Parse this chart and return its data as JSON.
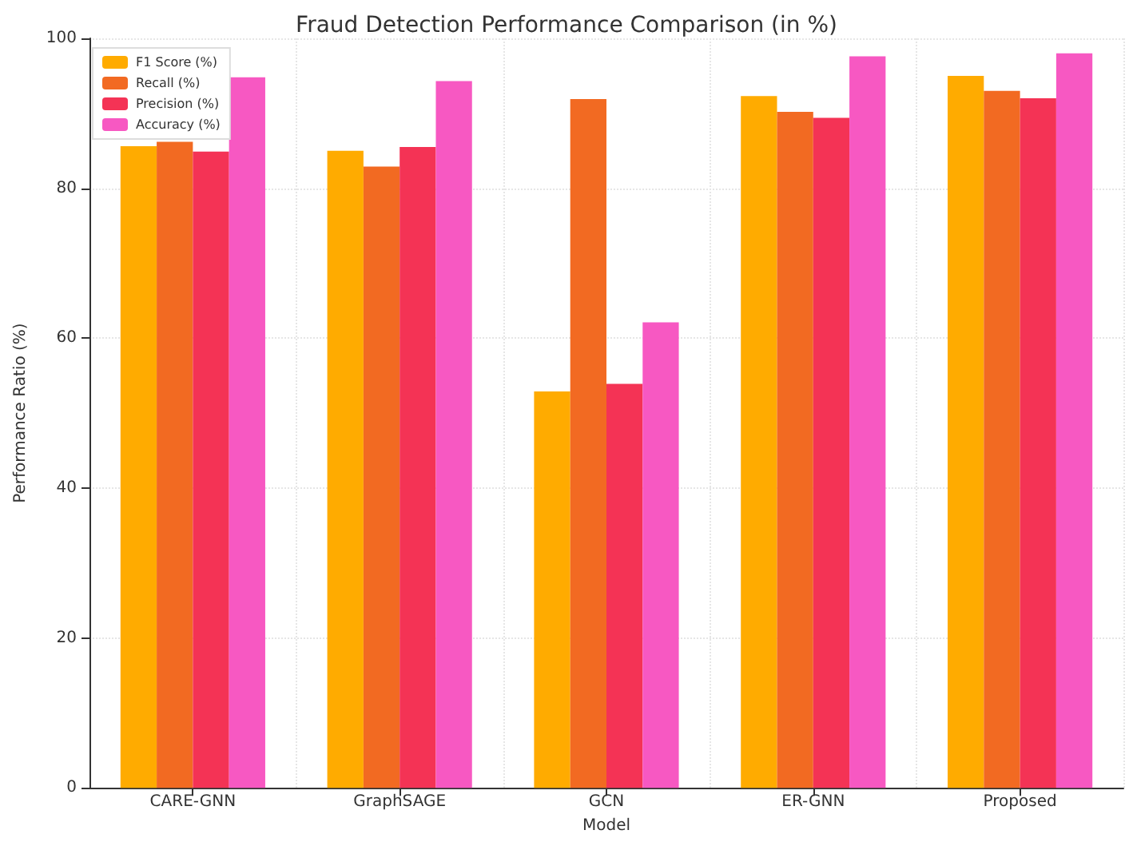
{
  "chart_data": {
    "type": "bar",
    "title": "Fraud Detection Performance Comparison (in %)",
    "xlabel": "Model",
    "ylabel": "Performance Ratio (%)",
    "categories": [
      "CARE-GNN",
      "GraphSAGE",
      "GCN",
      "ER-GNN",
      "Proposed"
    ],
    "series": [
      {
        "name": "F1 Score (%)",
        "color": "#ffab00",
        "values": [
          85.6,
          85.0,
          52.9,
          92.3,
          95.0
        ]
      },
      {
        "name": "Recall (%)",
        "color": "#f26a22",
        "values": [
          86.2,
          82.9,
          91.9,
          90.2,
          93.0
        ]
      },
      {
        "name": "Precision (%)",
        "color": "#f43355",
        "values": [
          84.9,
          85.5,
          53.9,
          89.4,
          92.0
        ]
      },
      {
        "name": "Accuracy (%)",
        "color": "#f758c2",
        "values": [
          94.8,
          94.3,
          62.1,
          97.6,
          98.0
        ]
      }
    ],
    "ylim": [
      0,
      100
    ],
    "yticks": [
      0,
      20,
      40,
      60,
      80,
      100
    ],
    "grid": true,
    "legend": "top left"
  }
}
